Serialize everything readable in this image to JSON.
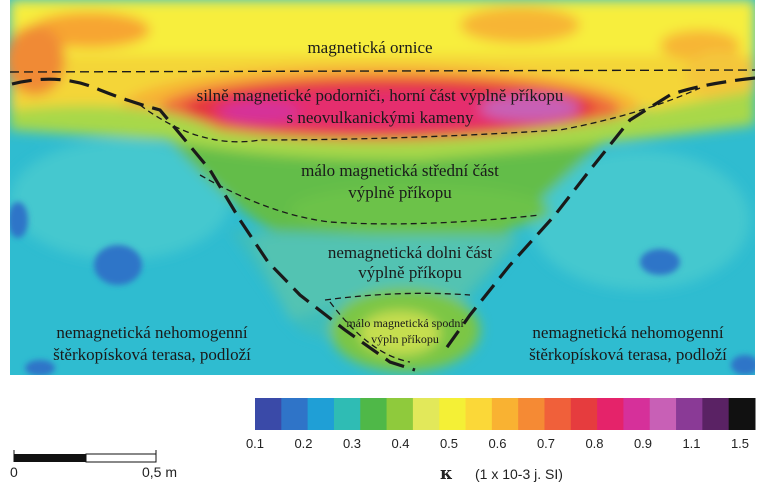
{
  "labels": {
    "topsoil": "magnetická ornice",
    "subsoil_1": "silně magnetické podorniči, horní část výplně příkopu",
    "subsoil_2": "s neovulkanickými kameny",
    "middle_1": "málo magnetická střední část",
    "middle_2": "výplně příkopu",
    "lower_1": "nemagnetická dolni část",
    "lower_2": "výplně příkopu",
    "bottom_1": "málo magnetická spodní",
    "bottom_2": "výpln příkopu",
    "terrace_left_1": "nemagnetická nehomogenní",
    "terrace_left_2": "štěrkopísková terasa, podloží",
    "terrace_right_1": "nemagnetická nehomogenní",
    "terrace_right_2": "štěrkopísková terasa, podloží"
  },
  "scale_bar": {
    "start_label": "0",
    "end_label": "0,5 m"
  },
  "legend": {
    "unit_symbol": "κ",
    "unit_text": "(1 x 10-3 j. SI)",
    "tick_labels": [
      "0.1",
      "0.2",
      "0.3",
      "0.4",
      "0.5",
      "0.6",
      "0.7",
      "0.8",
      "0.9",
      "1.1",
      "1.5"
    ],
    "colors": [
      "#3a4aa8",
      "#2f74c8",
      "#1f9fd6",
      "#2fbcb4",
      "#4fb848",
      "#8fca3c",
      "#e2e85a",
      "#f4f036",
      "#fbd838",
      "#f9b232",
      "#f58a34",
      "#f0603a",
      "#e63c3e",
      "#e5236a",
      "#d6309a",
      "#c860b6",
      "#8a3a96",
      "#5a2264",
      "#111111"
    ]
  },
  "palette": {
    "background_blue": "#2fbcd0",
    "dark_blue": "#2f74c8",
    "light_cyan": "#4fcfd6",
    "green": "#6cc24a",
    "light_green": "#9ad24a",
    "yellow": "#f4f036",
    "orange": "#f7a531",
    "red": "#e63a3c",
    "magenta": "#e52d6e",
    "purple": "#c860b6"
  }
}
